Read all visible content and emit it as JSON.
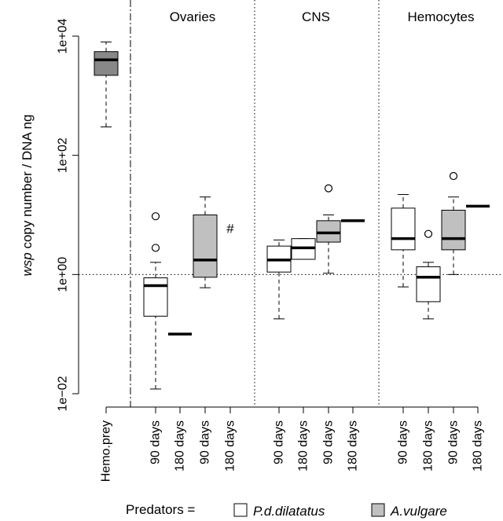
{
  "chart_data": {
    "type": "boxplot",
    "ylabel_italic": "wsp",
    "ylabel_rest": " copy number / DNA ng",
    "yscale": "log",
    "ylim": [
      0.01,
      10000
    ],
    "yticks": [
      {
        "value": 0.01,
        "label": "1e−02"
      },
      {
        "value": 1,
        "label": "1e+00"
      },
      {
        "value": 100,
        "label": "1e+02"
      },
      {
        "value": 10000,
        "label": "1e+04"
      }
    ],
    "reference_line": 1,
    "panels": [
      "Ovaries",
      "CNS",
      "Hemocytes"
    ],
    "categories": [
      "Hemo.prey",
      "90 days",
      "180 days",
      "90 days",
      "180 days",
      "90 days",
      "180 days",
      "90 days",
      "180 days",
      "90 days",
      "180 days",
      "90 days",
      "180 days"
    ],
    "boxes": [
      {
        "category": "Hemo.prey",
        "panel": "",
        "predator": "",
        "fill": "#888888",
        "whisker_low": 300,
        "q1": 2200,
        "median": 4000,
        "q3": 5500,
        "whisker_high": 8000,
        "outliers": []
      },
      {
        "category": "90 days",
        "panel": "Ovaries",
        "predator": "P.d.dilatatus",
        "fill": "#ffffff",
        "whisker_low": 0.012,
        "q1": 0.2,
        "median": 0.65,
        "q3": 0.88,
        "whisker_high": 1.6,
        "outliers": [
          2.8,
          9.5
        ]
      },
      {
        "category": "180 days",
        "panel": "Ovaries",
        "predator": "P.d.dilatatus",
        "median": 0.1
      },
      {
        "category": "90 days",
        "panel": "Ovaries",
        "predator": "A.vulgare",
        "fill": "#c0c0c0",
        "whisker_low": 0.6,
        "q1": 0.9,
        "median": 1.75,
        "q3": 10,
        "whisker_high": 20,
        "outliers": []
      },
      {
        "category": "180 days",
        "panel": "Ovaries",
        "predator": "A.vulgare",
        "annotation": "#"
      },
      {
        "category": "90 days",
        "panel": "CNS",
        "predator": "P.d.dilatatus",
        "fill": "#ffffff",
        "whisker_low": 0.18,
        "q1": 1.1,
        "median": 1.75,
        "q3": 3.0,
        "whisker_high": 3.8,
        "outliers": []
      },
      {
        "category": "180 days",
        "panel": "CNS",
        "predator": "P.d.dilatatus",
        "fill": "#ffffff",
        "whisker_low": 1.8,
        "q1": 1.8,
        "median": 2.8,
        "q3": 4.0,
        "whisker_high": 4.0,
        "outliers": []
      },
      {
        "category": "90 days",
        "panel": "CNS",
        "predator": "A.vulgare",
        "fill": "#c0c0c0",
        "whisker_low": 1.05,
        "q1": 3.5,
        "median": 5.0,
        "q3": 8.0,
        "whisker_high": 10,
        "outliers": [
          28
        ]
      },
      {
        "category": "180 days",
        "panel": "CNS",
        "predator": "A.vulgare",
        "median": 8.0
      },
      {
        "category": "90 days",
        "panel": "Hemocytes",
        "predator": "P.d.dilatatus",
        "fill": "#ffffff",
        "whisker_low": 0.62,
        "q1": 2.6,
        "median": 4.0,
        "q3": 13,
        "whisker_high": 22,
        "outliers": []
      },
      {
        "category": "180 days",
        "panel": "Hemocytes",
        "predator": "P.d.dilatatus",
        "fill": "#ffffff",
        "whisker_low": 0.18,
        "q1": 0.35,
        "median": 0.9,
        "q3": 1.35,
        "whisker_high": 1.6,
        "outliers": [
          4.8
        ]
      },
      {
        "category": "90 days",
        "panel": "Hemocytes",
        "predator": "A.vulgare",
        "fill": "#c0c0c0",
        "whisker_low": 1.0,
        "q1": 2.6,
        "median": 4.0,
        "q3": 12,
        "whisker_high": 20,
        "outliers": [
          45
        ]
      },
      {
        "category": "180 days",
        "panel": "Hemocytes",
        "predator": "A.vulgare",
        "median": 14
      }
    ],
    "legend": {
      "label": "Predators =",
      "items": [
        {
          "name": "P.d.dilatatus",
          "fill": "#ffffff"
        },
        {
          "name": "A.vulgare",
          "fill": "#c0c0c0"
        }
      ]
    }
  }
}
